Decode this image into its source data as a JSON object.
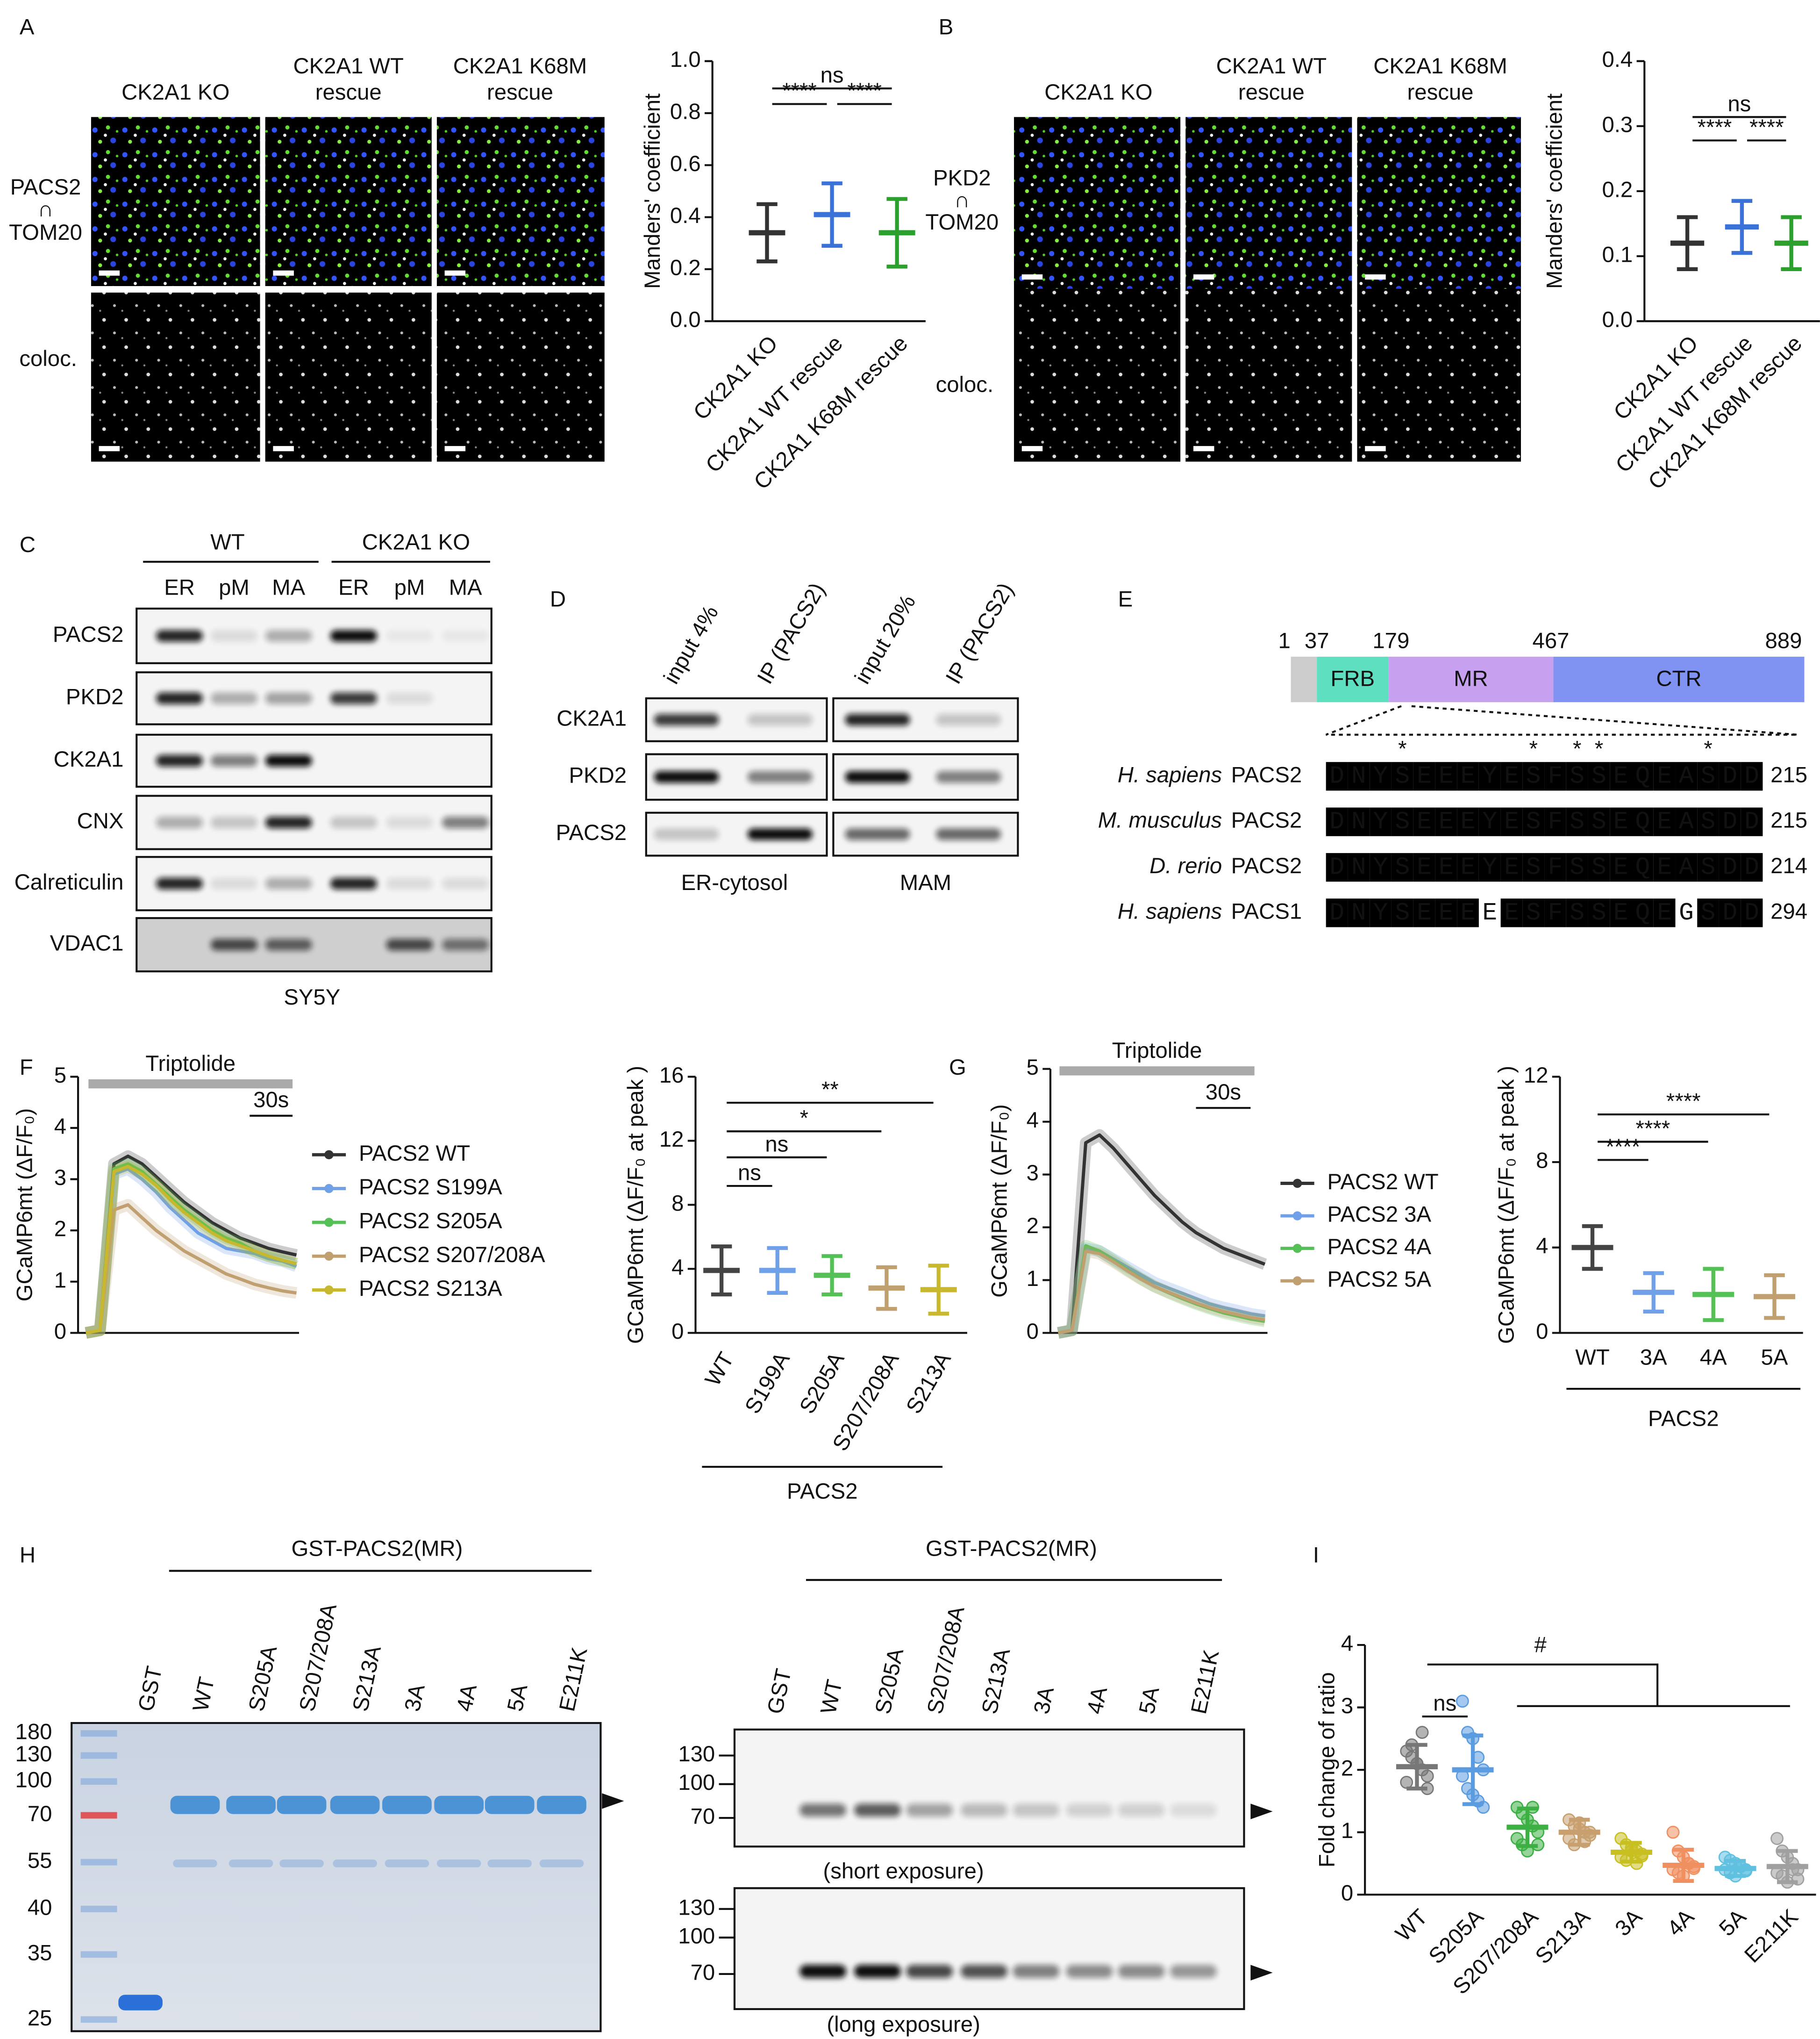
{
  "panel_labels": [
    "A",
    "B",
    "C",
    "D",
    "E",
    "F",
    "G",
    "H",
    "I"
  ],
  "panel_a": {
    "columns": [
      [
        "CK2A1 KO"
      ],
      [
        "CK2A1 WT",
        "rescue"
      ],
      [
        "CK2A1 K68M",
        "rescue"
      ]
    ],
    "channels": [
      "PACS2",
      "∩",
      "TOM20"
    ],
    "row_label": "coloc."
  },
  "panel_b": {
    "columns": [
      [
        "CK2A1 KO"
      ],
      [
        "CK2A1 WT",
        "rescue"
      ],
      [
        "CK2A1 K68M",
        "rescue"
      ]
    ],
    "channels": [
      "PKD2",
      "∩",
      "TOM20"
    ],
    "row_label": "coloc."
  },
  "panel_c": {
    "groups": [
      "WT",
      "CK2A1 KO"
    ],
    "lanes": [
      "ER",
      "pM",
      "MA",
      "ER",
      "pM",
      "MA"
    ],
    "rows": [
      "PACS2",
      "PKD2",
      "CK2A1",
      "CNX",
      "Calreticulin",
      "VDAC1"
    ],
    "cell_line": "SY5Y"
  },
  "panel_d": {
    "lanes": [
      "input 4%",
      "IP (PACS2)",
      "input 20%",
      "IP (PACS2)"
    ],
    "rows": [
      "CK2A1",
      "PKD2",
      "PACS2"
    ],
    "fractions": [
      "ER-cytosol",
      "MAM"
    ]
  },
  "panel_e": {
    "positions": [
      1,
      37,
      179,
      467,
      889
    ],
    "domains": [
      "FRB",
      "MR",
      "CTR"
    ],
    "asterisk": "*",
    "alignment": [
      {
        "species": "H. sapiens",
        "protein": "PACS2",
        "sequence": "DNYSEEEYESFSSEQEASDD",
        "end": 215
      },
      {
        "species": "M. musculus",
        "protein": "PACS2",
        "sequence": "DNYSEEEYESFSSEQEASDD",
        "end": 215
      },
      {
        "species": "D. rerio",
        "protein": "PACS2",
        "sequence": "DNYSEEEYESFSSEQEASDD",
        "end": 214
      },
      {
        "species": "H. sapiens",
        "protein": "PACS1",
        "sequence": "DNYSEEEEESFSSEQEGSDD",
        "end": 294
      }
    ]
  },
  "panel_h": {
    "gel": {
      "title": "GST-PACS2(MR)",
      "lanes": [
        "GST",
        "WT",
        "S205A",
        "S207/208A",
        "S213A",
        "3A",
        "4A",
        "5A",
        "E211K"
      ],
      "markers": [
        180,
        130,
        100,
        70,
        55,
        40,
        35,
        25
      ]
    },
    "blot": {
      "title": "GST-PACS2(MR)",
      "lanes": [
        "GST",
        "WT",
        "S205A",
        "S207/208A",
        "S213A",
        "3A",
        "4A",
        "5A",
        "E211K"
      ],
      "markers": [
        130,
        100,
        70
      ],
      "exposures": [
        "(short exposure)",
        "(long exposure)"
      ]
    }
  },
  "chart_data": [
    {
      "type": "dotplot",
      "ylabel": "Manders' coefficient",
      "categories": [
        "CK2A1 KO",
        "CK2A1 WT rescue",
        "CK2A1 K68M rescue"
      ],
      "values": [
        0.34,
        0.41,
        0.34
      ],
      "errors": [
        0.11,
        0.12,
        0.13
      ],
      "colors": [
        "#333333",
        "#3a72d8",
        "#2ca02c"
      ],
      "ylim": [
        0,
        1
      ],
      "yticks": [
        {
          "value": 0,
          "label": "0.0"
        },
        {
          "value": 0.2,
          "label": "0.2"
        },
        {
          "value": 0.4,
          "label": "0.4"
        },
        {
          "value": 0.6,
          "label": "0.6"
        },
        {
          "value": 0.8,
          "label": "0.8"
        },
        {
          "value": 1,
          "label": "1.0"
        }
      ],
      "annotations": [
        {
          "label": "ns",
          "between": [
            "CK2A1 KO",
            "CK2A1 K68M rescue"
          ]
        },
        {
          "label": "****",
          "between": [
            "CK2A1 KO",
            "CK2A1 WT rescue"
          ]
        },
        {
          "label": "****",
          "between": [
            "CK2A1 WT rescue",
            "CK2A1 K68M rescue"
          ]
        }
      ]
    },
    {
      "type": "dotplot",
      "ylabel": "Manders' coefficient",
      "categories": [
        "CK2A1 KO",
        "CK2A1 WT rescue",
        "CK2A1 K68M rescue"
      ],
      "values": [
        0.12,
        0.145,
        0.12
      ],
      "errors": [
        0.04,
        0.04,
        0.04
      ],
      "colors": [
        "#333333",
        "#3a72d8",
        "#2ca02c"
      ],
      "ylim": [
        0,
        0.4
      ],
      "yticks": [
        {
          "value": 0,
          "label": "0.0"
        },
        {
          "value": 0.1,
          "label": "0.1"
        },
        {
          "value": 0.2,
          "label": "0.2"
        },
        {
          "value": 0.3,
          "label": "0.3"
        },
        {
          "value": 0.4,
          "label": "0.4"
        }
      ],
      "annotations": [
        {
          "label": "ns",
          "between": [
            "CK2A1 KO",
            "CK2A1 K68M rescue"
          ]
        },
        {
          "label": "****",
          "between": [
            "CK2A1 KO",
            "CK2A1 WT rescue"
          ]
        },
        {
          "label": "****",
          "between": [
            "CK2A1 WT rescue",
            "CK2A1 K68M rescue"
          ]
        }
      ]
    },
    {
      "type": "line",
      "ylabel": "GCaMP6mt (ΔF/F₀)",
      "stimulus_label": "Triptolide",
      "scale_bar_label": "30s",
      "ylim": [
        0,
        5
      ],
      "yticks": [
        0,
        1,
        2,
        3,
        4,
        5
      ],
      "series": [
        {
          "name": "PACS2 WT",
          "color": "#333333",
          "values": [
            0,
            0.05,
            3.3,
            3.45,
            3.3,
            3.05,
            2.8,
            2.55,
            2.35,
            2.15,
            2.0,
            1.85,
            1.75,
            1.65,
            1.58,
            1.52
          ]
        },
        {
          "name": "PACS2 S199A",
          "color": "#6fa0e8",
          "values": [
            0,
            0.05,
            3.1,
            3.2,
            3.0,
            2.75,
            2.45,
            2.2,
            1.95,
            1.8,
            1.65,
            1.6,
            1.55,
            1.45,
            1.4,
            1.3
          ]
        },
        {
          "name": "PACS2 S205A",
          "color": "#55c055",
          "values": [
            0,
            0.05,
            3.2,
            3.3,
            3.15,
            2.9,
            2.65,
            2.4,
            2.2,
            2.0,
            1.85,
            1.75,
            1.6,
            1.5,
            1.42,
            1.35
          ]
        },
        {
          "name": "PACS2 S207/208A",
          "color": "#c0a070",
          "values": [
            0,
            0.05,
            2.4,
            2.5,
            2.25,
            2.0,
            1.8,
            1.6,
            1.45,
            1.3,
            1.15,
            1.05,
            0.95,
            0.88,
            0.82,
            0.78
          ]
        },
        {
          "name": "PACS2 S213A",
          "color": "#c8b830",
          "values": [
            0,
            0.05,
            3.15,
            3.25,
            3.1,
            2.88,
            2.6,
            2.35,
            2.15,
            1.95,
            1.8,
            1.7,
            1.6,
            1.5,
            1.42,
            1.35
          ]
        }
      ]
    },
    {
      "type": "dotplot",
      "ylabel": "GCaMP6mt (ΔF/F₀ at peak )",
      "group_label": "PACS2",
      "categories": [
        "WT",
        "S199A",
        "S205A",
        "S207/208A",
        "S213A"
      ],
      "values": [
        3.9,
        3.9,
        3.6,
        2.8,
        2.7
      ],
      "errors": [
        1.5,
        1.4,
        1.2,
        1.3,
        1.5
      ],
      "colors": [
        "#444444",
        "#6fa0e8",
        "#55c055",
        "#c0a070",
        "#c8b830"
      ],
      "ylim": [
        0,
        16
      ],
      "yticks": [
        0,
        4,
        8,
        12,
        16
      ],
      "annotations": [
        {
          "label": "ns",
          "between": [
            "WT",
            "S199A"
          ]
        },
        {
          "label": "ns",
          "between": [
            "WT",
            "S205A"
          ]
        },
        {
          "label": "*",
          "between": [
            "WT",
            "S207/208A"
          ]
        },
        {
          "label": "**",
          "between": [
            "WT",
            "S213A"
          ]
        }
      ]
    },
    {
      "type": "line",
      "ylabel": "GCaMP6mt (ΔF/F₀)",
      "stimulus_label": "Triptolide",
      "scale_bar_label": "30s",
      "ylim": [
        0,
        5
      ],
      "yticks": [
        0,
        1,
        2,
        3,
        4,
        5
      ],
      "series": [
        {
          "name": "PACS2 WT",
          "color": "#333333",
          "values": [
            0,
            0.05,
            3.6,
            3.75,
            3.5,
            3.2,
            2.9,
            2.6,
            2.35,
            2.1,
            1.9,
            1.75,
            1.6,
            1.5,
            1.4,
            1.3
          ]
        },
        {
          "name": "PACS2 3A",
          "color": "#6fa0e8",
          "values": [
            0,
            0.05,
            1.6,
            1.55,
            1.4,
            1.25,
            1.1,
            0.95,
            0.85,
            0.75,
            0.65,
            0.55,
            0.48,
            0.42,
            0.36,
            0.32
          ]
        },
        {
          "name": "PACS2 4A",
          "color": "#55c055",
          "values": [
            0,
            0.05,
            1.65,
            1.55,
            1.38,
            1.2,
            1.03,
            0.88,
            0.76,
            0.65,
            0.55,
            0.46,
            0.38,
            0.32,
            0.26,
            0.22
          ]
        },
        {
          "name": "PACS2 5A",
          "color": "#c0a070",
          "values": [
            0,
            0.05,
            1.55,
            1.5,
            1.35,
            1.18,
            1.02,
            0.88,
            0.77,
            0.67,
            0.57,
            0.48,
            0.41,
            0.35,
            0.29,
            0.25
          ]
        }
      ]
    },
    {
      "type": "dotplot",
      "ylabel": "GCaMP6mt (ΔF/F₀ at peak )",
      "group_label": "PACS2",
      "categories": [
        "WT",
        "3A",
        "4A",
        "5A"
      ],
      "values": [
        4.0,
        1.9,
        1.8,
        1.7
      ],
      "errors": [
        1.0,
        0.9,
        1.2,
        1.0
      ],
      "colors": [
        "#444444",
        "#6fa0e8",
        "#55c055",
        "#c0a070"
      ],
      "ylim": [
        0,
        12
      ],
      "yticks": [
        0,
        4,
        8,
        12
      ],
      "annotations": [
        {
          "label": "****",
          "between": [
            "WT",
            "3A"
          ]
        },
        {
          "label": "****",
          "between": [
            "WT",
            "4A"
          ]
        },
        {
          "label": "****",
          "between": [
            "WT",
            "5A"
          ]
        }
      ]
    },
    {
      "type": "dotplot",
      "ylabel": "Fold change of ratio",
      "categories": [
        "WT",
        "S205A",
        "S207/208A",
        "S213A",
        "3A",
        "4A",
        "5A",
        "E211K"
      ],
      "values": [
        2.05,
        2.0,
        1.08,
        1.0,
        0.68,
        0.47,
        0.42,
        0.45
      ],
      "errors": [
        0.35,
        0.55,
        0.3,
        0.2,
        0.15,
        0.25,
        0.12,
        0.25
      ],
      "colors": [
        "#777777",
        "#5b9be0",
        "#3cb043",
        "#c8a070",
        "#c8c020",
        "#f09060",
        "#60c0e0",
        "#a0a0a0"
      ],
      "ylim": [
        0,
        4
      ],
      "yticks": [
        0,
        1,
        2,
        3,
        4
      ],
      "points": [
        [
          2.3,
          2.2,
          2.1,
          2.0,
          1.9,
          1.8,
          2.4,
          2.1,
          2.6,
          1.7
        ],
        [
          3.1,
          2.6,
          2.5,
          2.2,
          2.0,
          1.9,
          1.7,
          1.6,
          1.5,
          1.4
        ],
        [
          1.4,
          1.3,
          1.2,
          1.1,
          1.0,
          0.9,
          0.8,
          0.7,
          1.4,
          0.8
        ],
        [
          1.2,
          1.1,
          1.05,
          1.0,
          0.95,
          0.9,
          0.8,
          1.15,
          0.85,
          1.0
        ],
        [
          0.9,
          0.8,
          0.7,
          0.7,
          0.65,
          0.6,
          0.55,
          0.75,
          0.5,
          0.62
        ],
        [
          1.0,
          0.7,
          0.6,
          0.5,
          0.45,
          0.4,
          0.35,
          0.3,
          0.5,
          0.42
        ],
        [
          0.6,
          0.55,
          0.5,
          0.45,
          0.4,
          0.4,
          0.35,
          0.3,
          0.45,
          0.38
        ],
        [
          0.9,
          0.7,
          0.6,
          0.5,
          0.4,
          0.35,
          0.3,
          0.2,
          0.4,
          0.25
        ]
      ],
      "annotations": [
        {
          "label": "ns",
          "between": [
            "WT",
            "S205A"
          ]
        },
        {
          "label": "#",
          "between": [
            "WT",
            "E211K"
          ]
        }
      ]
    }
  ]
}
